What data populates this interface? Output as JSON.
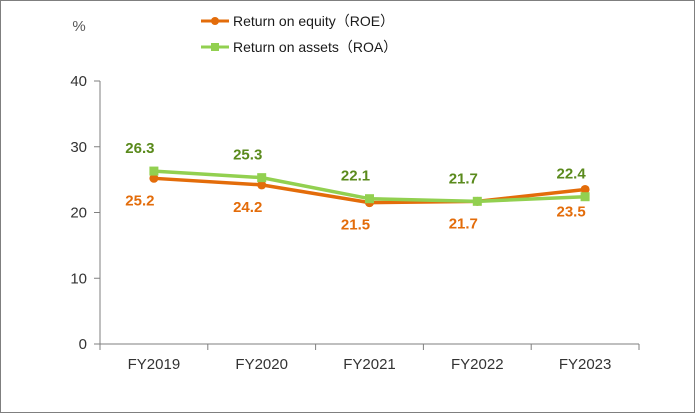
{
  "chart_data": {
    "type": "line",
    "unit_label": "%",
    "categories": [
      "FY2019",
      "FY2020",
      "FY2021",
      "FY2022",
      "FY2023"
    ],
    "ylim": [
      0,
      40
    ],
    "yticks": [
      0,
      10,
      20,
      30,
      40
    ],
    "grid": false,
    "legend_position": "top",
    "series": [
      {
        "name": "Return on equity（ROE）",
        "values": [
          25.2,
          24.2,
          21.5,
          21.7,
          23.5
        ],
        "labels": [
          "25.2",
          "24.2",
          "21.5",
          "21.7",
          "23.5"
        ],
        "color": "#e36c0a",
        "marker": "circle",
        "label_side": [
          "below",
          "below",
          "below",
          "below",
          "below"
        ]
      },
      {
        "name": "Return on assets（ROA）",
        "values": [
          26.3,
          25.3,
          22.1,
          21.7,
          22.4
        ],
        "labels": [
          "26.3",
          "25.3",
          "22.1",
          "21.7",
          "22.4"
        ],
        "color": "#92d050",
        "label_color": "#5a8a1c",
        "marker": "square",
        "label_side": [
          "above",
          "above",
          "above",
          "above",
          "above"
        ]
      }
    ]
  }
}
